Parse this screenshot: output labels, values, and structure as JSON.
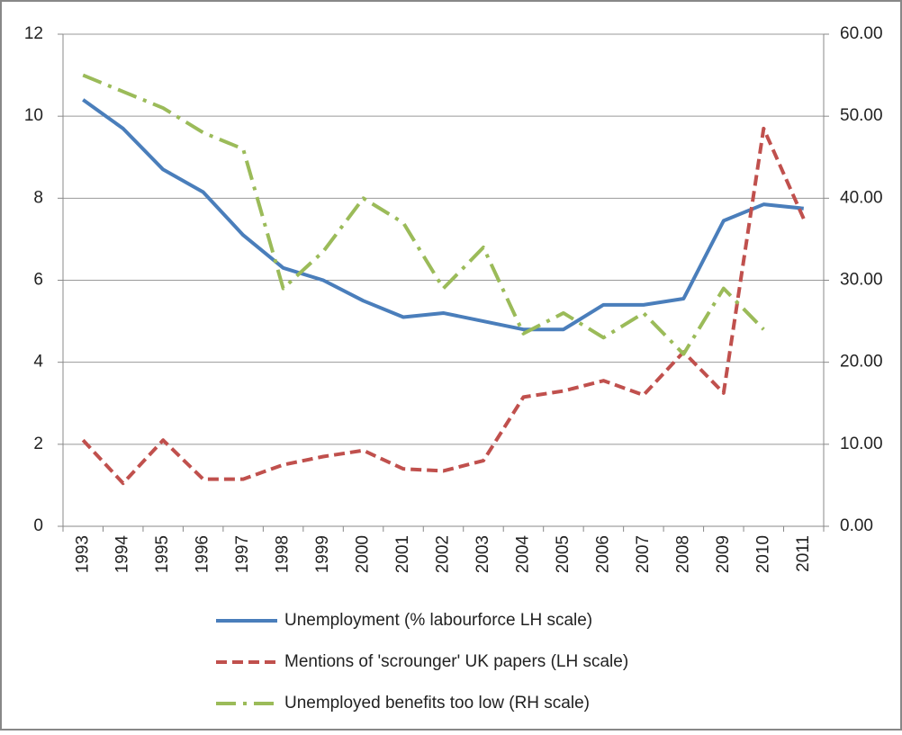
{
  "chart_data": {
    "type": "line",
    "categories": [
      "1993",
      "1994",
      "1995",
      "1996",
      "1997",
      "1998",
      "1999",
      "2000",
      "2001",
      "2002",
      "2003",
      "2004",
      "2005",
      "2006",
      "2007",
      "2008",
      "2009",
      "2010",
      "2011"
    ],
    "series": [
      {
        "name": "Unemployment (% labourforce LH scale)",
        "color": "#4a7ebb",
        "dash": "none",
        "values": [
          10.4,
          9.7,
          8.7,
          8.15,
          7.1,
          6.3,
          6.0,
          5.5,
          5.1,
          5.2,
          5.0,
          4.8,
          4.8,
          5.4,
          5.4,
          5.55,
          7.45,
          7.85,
          7.75
        ]
      },
      {
        "name": "Mentions of 'scrounger' UK papers (LH scale)",
        "color": "#c0504d",
        "dash": "12,6",
        "values": [
          2.1,
          1.05,
          2.1,
          1.15,
          1.15,
          1.5,
          1.7,
          1.85,
          1.4,
          1.35,
          1.6,
          3.15,
          3.3,
          3.55,
          3.2,
          4.25,
          3.25,
          9.7,
          7.5
        ]
      },
      {
        "name": "Unemployed benefits too low (RH scale)",
        "color": "#9bbb59",
        "dash": "22,8,4,8",
        "axis": "y2",
        "values": [
          55,
          53,
          51,
          48,
          46,
          29,
          33.5,
          40,
          37,
          29,
          34,
          23.5,
          26,
          23,
          26,
          21,
          29,
          24,
          null
        ]
      }
    ],
    "ylim": [
      0,
      12
    ],
    "yticks": [
      0,
      2,
      4,
      6,
      8,
      10,
      12
    ],
    "y2lim": [
      0,
      60
    ],
    "y2ticks": [
      {
        "value": 0,
        "label": "0.00"
      },
      {
        "value": 10,
        "label": "10.00"
      },
      {
        "value": 20,
        "label": "20.00"
      },
      {
        "value": 30,
        "label": "30.00"
      },
      {
        "value": 40,
        "label": "40.00"
      },
      {
        "value": 50,
        "label": "50.00"
      },
      {
        "value": 60,
        "label": "60.00"
      }
    ],
    "grid": true
  }
}
